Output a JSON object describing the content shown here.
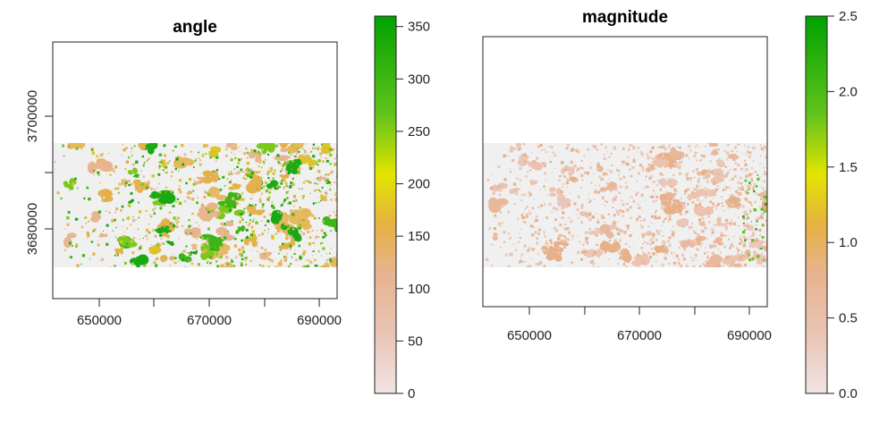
{
  "chart_data": [
    {
      "type": "heatmap",
      "title": "angle",
      "xlabel": "",
      "ylabel": "",
      "xlim": [
        643500,
        693500
      ],
      "ylim": [
        3666500,
        3712500
      ],
      "x_ticks": [
        "650000",
        "670000",
        "690000"
      ],
      "y_ticks": [
        "3680000",
        "3700000"
      ],
      "data_extent": {
        "y": [
          3673500,
          3694500
        ]
      },
      "legend": {
        "range": [
          0,
          360
        ],
        "ticks": [
          "0",
          "50",
          "100",
          "150",
          "200",
          "250",
          "300",
          "350"
        ],
        "colors": [
          "#f1e3e3",
          "#e8b38f",
          "#e6b240",
          "#e2e400",
          "#62c31c",
          "#00a300"
        ]
      },
      "background_color": "#f0f0f0"
    },
    {
      "type": "heatmap",
      "title": "magnitude",
      "xlabel": "",
      "ylabel": "",
      "xlim": [
        643500,
        693500
      ],
      "ylim": [
        3666500,
        3712500
      ],
      "x_ticks": [
        "650000",
        "670000",
        "690000"
      ],
      "y_ticks": [],
      "data_extent": {
        "y": [
          3673500,
          3694500
        ]
      },
      "legend": {
        "range": [
          0,
          2.5
        ],
        "ticks": [
          "0.0",
          "0.5",
          "1.0",
          "1.5",
          "2.0",
          "2.5"
        ],
        "colors": [
          "#f1e3e3",
          "#e8b38f",
          "#e6b240",
          "#e2e400",
          "#62c31c",
          "#00a300"
        ]
      },
      "background_color": "#f0f0f0"
    }
  ]
}
